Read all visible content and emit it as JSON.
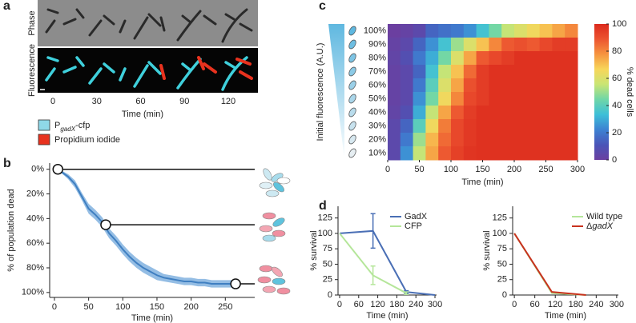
{
  "chart_data": [
    {
      "type": "image",
      "label": "a",
      "row_labels": [
        "Phase",
        "Fluorescence"
      ],
      "frame_times": [
        0,
        30,
        60,
        90,
        120
      ],
      "x_label": "Time (min)",
      "legend": [
        {
          "name_parts": [
            "P",
            "gadX",
            "-cfp"
          ],
          "color": "#8fd8e8"
        },
        {
          "name": "Propidium iodide",
          "color": "#e8321e"
        }
      ]
    },
    {
      "type": "line",
      "label": "b",
      "x_label": "Time (min)",
      "y_label": "% of population dead",
      "xlim": [
        -7,
        293
      ],
      "ylim": [
        -5,
        104
      ],
      "y_inverted": true,
      "xticks": [
        0,
        50,
        100,
        150,
        200,
        250
      ],
      "yticks": [
        {
          "value": 0,
          "label": "0%"
        },
        {
          "value": 20,
          "label": "20%"
        },
        {
          "value": 40,
          "label": "40%"
        },
        {
          "value": 60,
          "label": "60%"
        },
        {
          "value": 80,
          "label": "80%"
        },
        {
          "value": 100,
          "label": "100%"
        }
      ],
      "series": [
        {
          "color": "#3f7fc1",
          "band_color": "#94bde4",
          "x": [
            5,
            10,
            20,
            30,
            40,
            50,
            60,
            70,
            80,
            90,
            100,
            110,
            120,
            130,
            140,
            150,
            160,
            170,
            180,
            190,
            200,
            210,
            220,
            230,
            240,
            250,
            260
          ],
          "values": [
            0,
            2,
            6,
            12,
            22,
            32,
            37,
            43,
            52,
            58,
            65,
            71,
            76,
            80,
            83,
            86,
            88,
            89,
            90,
            91,
            91,
            92,
            92,
            93,
            93,
            93,
            93
          ],
          "error": [
            0,
            1,
            2,
            3,
            3,
            4,
            4,
            4,
            4,
            4,
            4,
            4,
            4,
            4,
            4,
            4,
            3,
            3,
            3,
            3,
            3,
            3,
            3,
            3,
            3,
            3,
            3
          ]
        }
      ],
      "markers": {
        "x": [
          5,
          75,
          265
        ],
        "values": [
          0,
          45,
          93
        ]
      }
    },
    {
      "type": "heatmap",
      "label": "c",
      "x_label": "Time (min)",
      "y_label": "Initial fluorescence (A.U.)",
      "colorbar_label": "% dead cells",
      "categories": [
        "100%",
        "90%",
        "80%",
        "70%",
        "60%",
        "50%",
        "40%",
        "30%",
        "20%",
        "10%"
      ],
      "xbins": [
        0,
        20,
        40,
        60,
        80,
        100,
        120,
        140,
        160,
        180,
        200,
        220,
        240,
        260,
        280,
        300
      ],
      "xlim": [
        0,
        300
      ],
      "xticks": [
        0,
        50,
        100,
        150,
        200,
        250,
        300
      ],
      "zlim": [
        0,
        100
      ],
      "zticks": [
        0,
        20,
        40,
        60,
        80,
        100
      ],
      "colormap": [
        "#6b3fa0",
        "#4a55b8",
        "#3d82d2",
        "#3dbfd8",
        "#6fd6a8",
        "#c9e574",
        "#f7d65a",
        "#f6943f",
        "#ec5430",
        "#dc2a1d"
      ],
      "values": [
        [
          0,
          2,
          5,
          15,
          18,
          20,
          25,
          35,
          45,
          55,
          60,
          65,
          70,
          75,
          80
        ],
        [
          2,
          5,
          15,
          25,
          35,
          50,
          60,
          70,
          80,
          88,
          90,
          88,
          92,
          95,
          95
        ],
        [
          3,
          8,
          20,
          30,
          45,
          60,
          75,
          88,
          92,
          95,
          98,
          98,
          98,
          98,
          98
        ],
        [
          2,
          5,
          15,
          35,
          55,
          70,
          85,
          95,
          98,
          98,
          98,
          98,
          98,
          98,
          98
        ],
        [
          2,
          5,
          20,
          40,
          60,
          75,
          90,
          95,
          98,
          98,
          98,
          98,
          98,
          98,
          98
        ],
        [
          2,
          5,
          25,
          45,
          65,
          80,
          92,
          95,
          98,
          98,
          98,
          98,
          98,
          98,
          98
        ],
        [
          3,
          8,
          30,
          55,
          75,
          88,
          95,
          98,
          98,
          98,
          98,
          98,
          98,
          98,
          98
        ],
        [
          5,
          15,
          40,
          65,
          82,
          92,
          96,
          98,
          98,
          98,
          98,
          98,
          98,
          98,
          98
        ],
        [
          5,
          20,
          50,
          72,
          85,
          92,
          96,
          98,
          98,
          98,
          98,
          98,
          98,
          98,
          98
        ],
        [
          5,
          25,
          55,
          75,
          88,
          94,
          97,
          98,
          98,
          98,
          98,
          98,
          98,
          98,
          98
        ]
      ]
    },
    {
      "type": "line",
      "label": "d",
      "x_label": "Time (min)",
      "y_label": "% survival",
      "xlim": [
        -5,
        305
      ],
      "ylim": [
        0,
        144
      ],
      "xticks": [
        0,
        60,
        120,
        180,
        240,
        300
      ],
      "yticks": [
        0,
        25,
        50,
        75,
        100,
        125
      ],
      "legend": "upper right",
      "series": [
        {
          "name": "GadX",
          "color": "#4a6fb5",
          "x": [
            0,
            105,
            210,
            300
          ],
          "values": [
            100,
            104,
            5,
            0
          ],
          "error": [
            0,
            28,
            2,
            0
          ]
        },
        {
          "name": "CFP",
          "color": "#b5e69a",
          "x": [
            0,
            105,
            210
          ],
          "values": [
            100,
            32,
            3
          ],
          "error": [
            0,
            15,
            2
          ]
        }
      ]
    },
    {
      "type": "line",
      "x_label": "Time (min)",
      "y_label": "% survival",
      "xlim": [
        -5,
        305
      ],
      "ylim": [
        0,
        144
      ],
      "xticks": [
        0,
        60,
        120,
        180,
        240,
        300
      ],
      "yticks": [
        0,
        25,
        50,
        75,
        100,
        125
      ],
      "legend": "upper right",
      "series": [
        {
          "name": "Wild type",
          "color": "#b5e69a",
          "x": [
            0,
            110,
            210
          ],
          "values": [
            100,
            3,
            0
          ]
        },
        {
          "name_parts": [
            "Δ",
            "gadX"
          ],
          "color": "#c8321e",
          "x": [
            0,
            110,
            210
          ],
          "values": [
            100,
            5,
            0
          ]
        }
      ]
    }
  ]
}
